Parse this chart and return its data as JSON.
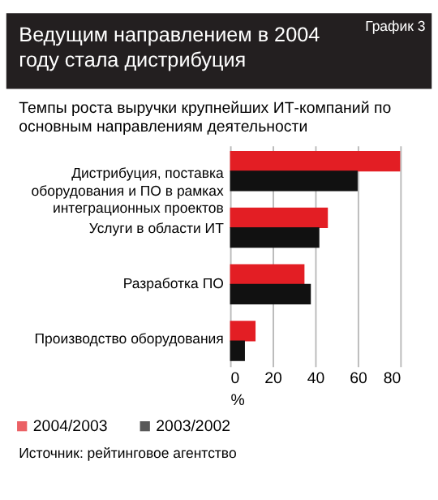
{
  "chart_data": {
    "type": "bar",
    "orientation": "horizontal",
    "title": "Ведущим направлением в 2004 году стала дистрибуция",
    "subtitle": "Темпы роста выручки крупнейших ИТ-компаний по основным направлениям деятельности",
    "annotations": [
      "График 3",
      "Источник: рейтинговое агентство"
    ],
    "categories": [
      "Дистрибуция, поставка оборудования и ПО в рамках интеграционных проектов",
      "Услуги в области ИТ",
      "Разработка ПО",
      "Производство оборудования"
    ],
    "series": [
      {
        "name": "2004/2003",
        "color": "#e31e24",
        "values": [
          80,
          46,
          35,
          12
        ]
      },
      {
        "name": "2003/2002",
        "color": "#111111",
        "values": [
          60,
          42,
          38,
          7
        ]
      }
    ],
    "xlabel": "%",
    "xlim": [
      0,
      80
    ],
    "xticks": [
      0,
      20,
      40,
      60,
      80
    ],
    "grid": "x",
    "legend": "bottom"
  }
}
